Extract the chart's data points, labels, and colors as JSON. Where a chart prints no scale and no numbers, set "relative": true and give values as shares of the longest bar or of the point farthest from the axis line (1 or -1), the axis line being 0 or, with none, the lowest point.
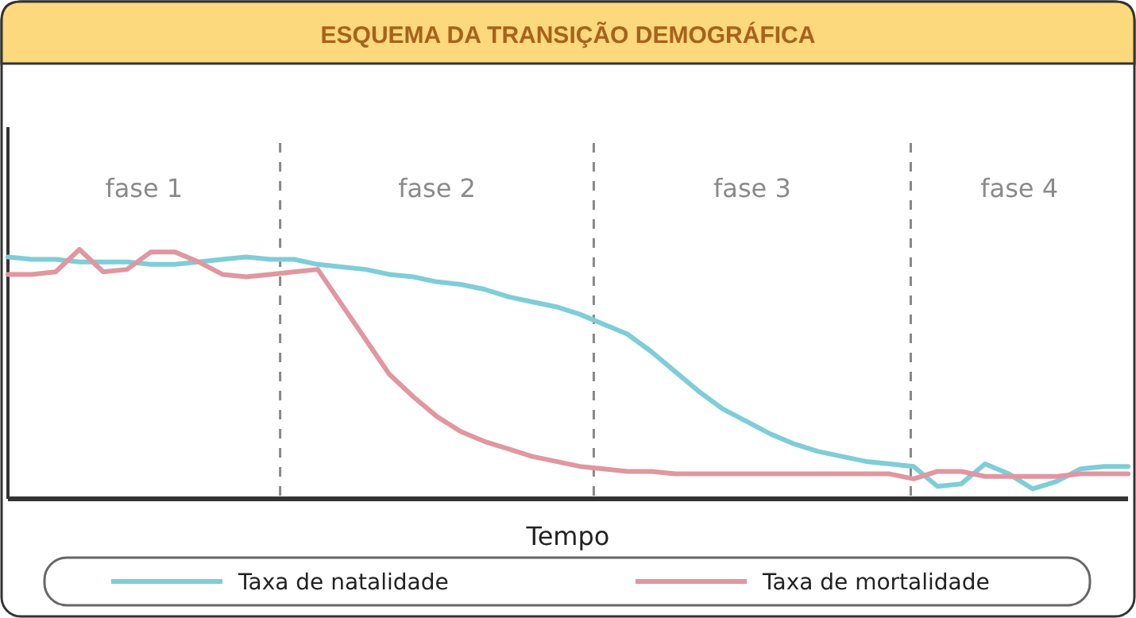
{
  "chart_data": {
    "type": "line",
    "relative": true,
    "title": "ESQUEMA DA TRANSIÇÃO DEMOGRÁFICA",
    "xlabel": "Tempo",
    "legend": "bottom",
    "line_style": "solid",
    "annotations": [
      "fase 1",
      "fase 2",
      "fase 3",
      "fase 4"
    ],
    "categories": [
      null,
      null,
      null,
      null,
      null,
      null,
      null,
      null,
      null,
      null,
      null,
      null,
      null,
      null,
      null,
      null,
      null,
      null,
      null,
      null,
      null,
      null,
      null,
      null,
      null,
      null,
      null,
      null,
      null,
      null,
      null,
      null,
      null,
      null,
      null,
      null,
      null,
      null,
      null,
      null,
      null,
      null,
      null,
      null,
      null,
      null,
      null,
      null
    ],
    "series": [
      {
        "name": "Taxa de natalidade",
        "color": "#7ecdd8",
        "values": [
          0.97,
          0.96,
          0.96,
          0.95,
          0.95,
          0.95,
          0.94,
          0.94,
          0.95,
          0.96,
          0.97,
          0.96,
          0.96,
          0.94,
          0.93,
          0.92,
          0.9,
          0.89,
          0.87,
          0.86,
          0.84,
          0.81,
          0.79,
          0.77,
          0.74,
          0.7,
          0.66,
          0.59,
          0.51,
          0.43,
          0.36,
          0.31,
          0.26,
          0.22,
          0.19,
          0.17,
          0.15,
          0.14,
          0.13,
          0.05,
          0.06,
          0.14,
          0.1,
          0.04,
          0.07,
          0.12,
          0.13,
          0.13
        ]
      },
      {
        "name": "Taxa de mortalidade",
        "color": "#e0979f",
        "values": [
          0.9,
          0.9,
          0.91,
          1,
          0.91,
          0.92,
          0.99,
          0.99,
          0.95,
          0.9,
          0.89,
          0.9,
          0.91,
          0.92,
          0.78,
          0.64,
          0.5,
          0.41,
          0.33,
          0.27,
          0.23,
          0.2,
          0.17,
          0.15,
          0.13,
          0.12,
          0.11,
          0.11,
          0.1,
          0.1,
          0.1,
          0.1,
          0.1,
          0.1,
          0.1,
          0.1,
          0.1,
          0.1,
          0.08,
          0.11,
          0.11,
          0.09,
          0.09,
          0.09,
          0.09,
          0.1,
          0.1,
          0.1
        ]
      }
    ]
  }
}
